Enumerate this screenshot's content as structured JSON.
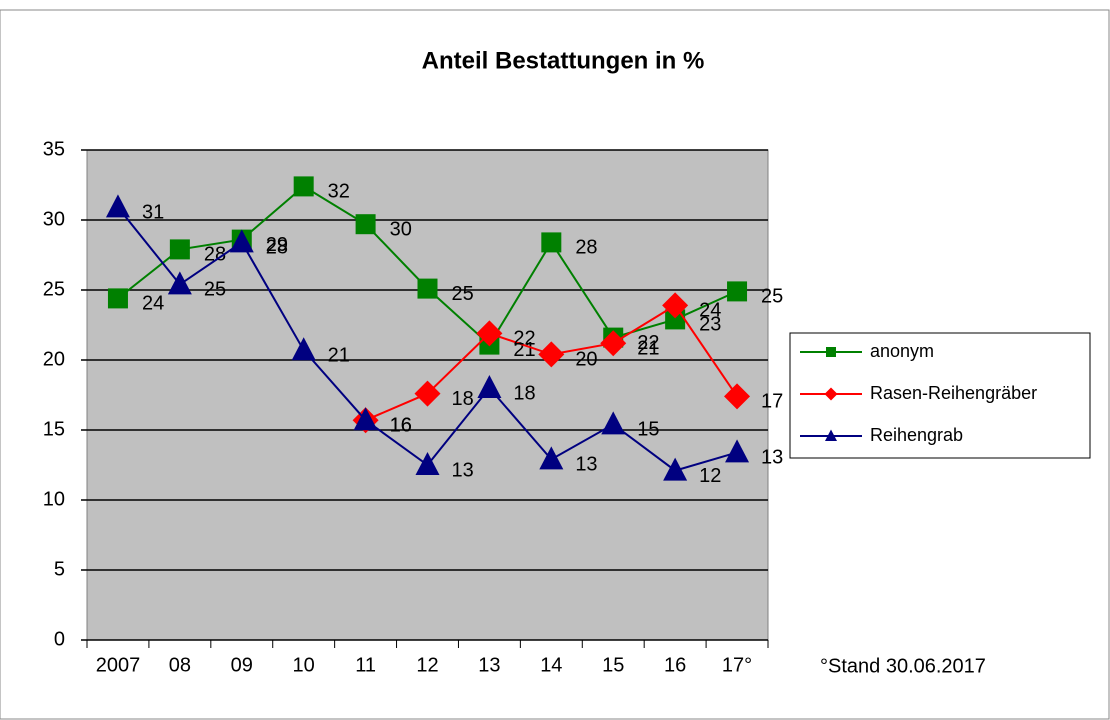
{
  "chart_data": {
    "type": "line",
    "title": "Anteil Bestattungen in %",
    "annotation": "°Stand 30.06.2017",
    "categories": [
      "2007",
      "08",
      "09",
      "10",
      "11",
      "12",
      "13",
      "14",
      "15",
      "16",
      "17°"
    ],
    "ylim": [
      0,
      35
    ],
    "yticks": [
      0,
      5,
      10,
      15,
      20,
      25,
      30,
      35
    ],
    "grid": true,
    "legend": "right",
    "series": [
      {
        "name": "anonym",
        "color": "#008000",
        "marker": "square",
        "values": [
          24.4,
          27.9,
          28.6,
          32.4,
          29.7,
          25.1,
          21.1,
          28.4,
          21.6,
          22.9,
          24.9
        ],
        "value_labels": [
          "24",
          "28",
          "29",
          "32",
          "30",
          "25",
          "21",
          "28",
          "22",
          "23",
          "25"
        ]
      },
      {
        "name": "Rasen-Reihengräber",
        "color": "#ff0000",
        "marker": "diamond",
        "values": [
          null,
          null,
          null,
          null,
          15.7,
          17.6,
          21.9,
          20.4,
          21.2,
          23.9,
          17.4
        ],
        "value_labels": [
          null,
          null,
          null,
          null,
          "16",
          "18",
          "22",
          "20",
          "21",
          "24",
          "17"
        ]
      },
      {
        "name": "Reihengrab",
        "color": "#000080",
        "marker": "triangle",
        "values": [
          30.9,
          25.4,
          28.4,
          20.7,
          15.7,
          12.5,
          18.0,
          12.9,
          15.4,
          12.1,
          13.4
        ],
        "value_labels": [
          "31",
          "25",
          "28",
          "21",
          "16",
          "13",
          "18",
          "13",
          "15",
          "12",
          "13"
        ]
      }
    ]
  }
}
